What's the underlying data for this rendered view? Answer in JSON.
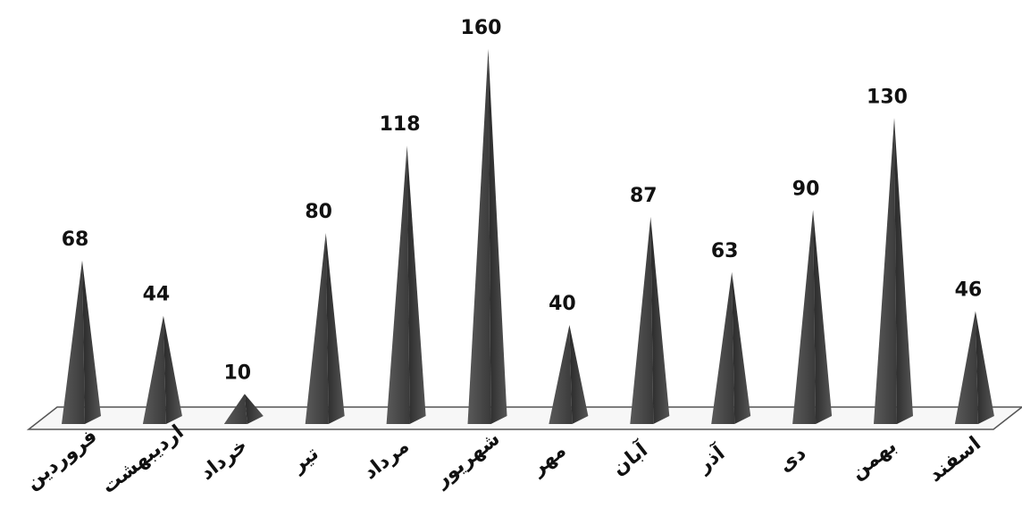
{
  "chart_data": {
    "type": "bar",
    "bar_shape": "pyramid",
    "categories": [
      "فروردین",
      "اردیبهشت",
      "خرداد",
      "تیر",
      "مرداد",
      "شهریور",
      "مهر",
      "آبان",
      "آذر",
      "دی",
      "بهمن",
      "اسفند"
    ],
    "values": [
      68,
      44,
      10,
      80,
      118,
      160,
      40,
      87,
      63,
      90,
      130,
      46
    ],
    "title": "",
    "xlabel": "",
    "ylabel": "",
    "ylim": [
      0,
      160
    ],
    "grid": false,
    "legend": "none",
    "data_labels": true,
    "colors": {
      "background": "#ffffff",
      "face_dark": "#2a2a2a",
      "face_light": "#6b6b6b",
      "floor_stroke": "#555555",
      "text": "#111111"
    }
  }
}
